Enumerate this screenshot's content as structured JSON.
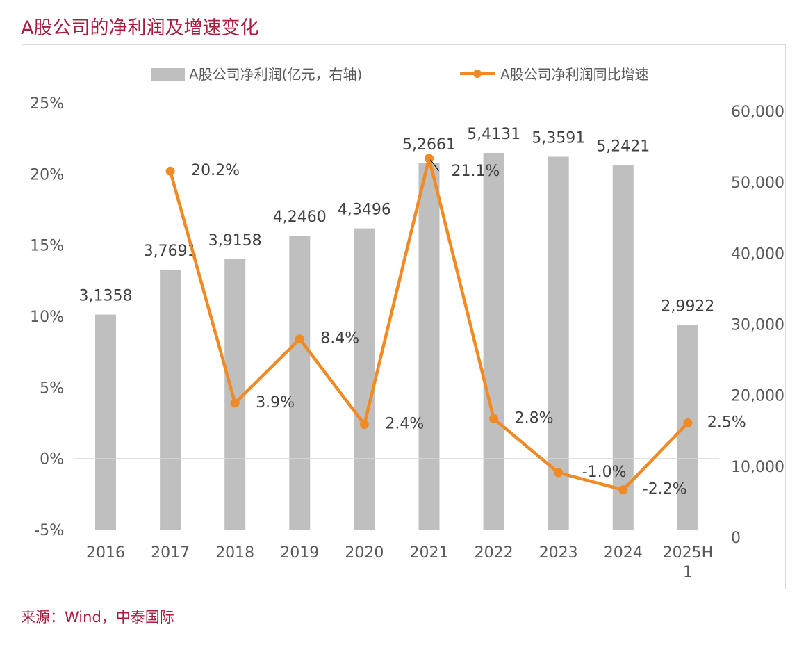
{
  "title": "A股公司的净利润及增速变化",
  "source": "来源：Wind，中泰国际",
  "chart_data": {
    "type": "bar+line",
    "categories": [
      "2016",
      "2017",
      "2018",
      "2019",
      "2020",
      "2021",
      "2022",
      "2023",
      "2024",
      "2025H1"
    ],
    "category_labels": [
      [
        "2016"
      ],
      [
        "2017"
      ],
      [
        "2018"
      ],
      [
        "2019"
      ],
      [
        "2020"
      ],
      [
        "2021"
      ],
      [
        "2022"
      ],
      [
        "2023"
      ],
      [
        "2024"
      ],
      [
        "2025H",
        "1"
      ]
    ],
    "legend": {
      "bar": "A股公司净利润(亿元，右轴)",
      "line": "A股公司净利润同比增速",
      "position": "top"
    },
    "bar_series": {
      "name": "A股公司净利润(亿元，右轴)",
      "values": [
        31358,
        37691,
        39158,
        42460,
        43496,
        52661,
        54131,
        53591,
        52421,
        29922
      ],
      "labels": [
        "3,1358",
        "3,7691",
        "3,9158",
        "4,2460",
        "4,3496",
        "5,2661",
        "5,4131",
        "5,3591",
        "5,2421",
        "2,9922"
      ],
      "axis": "right",
      "color": "#bfbfbf"
    },
    "line_series": {
      "name": "A股公司净利润同比增速",
      "x": [
        "2017",
        "2018",
        "2019",
        "2020",
        "2021",
        "2022",
        "2023",
        "2024",
        "2025H1"
      ],
      "values": [
        20.2,
        3.9,
        8.4,
        2.4,
        21.1,
        2.8,
        -1.0,
        -2.2,
        2.5
      ],
      "labels": [
        "20.2%",
        "3.9%",
        "8.4%",
        "2.4%",
        "21.1%",
        "2.8%",
        "-1.0%",
        "-2.2%",
        "2.5%"
      ],
      "axis": "left",
      "color": "#f08a24"
    },
    "left_axis": {
      "min": -5,
      "max": 25,
      "ticks": [
        "25%",
        "20%",
        "15%",
        "10%",
        "5%",
        "0%",
        "-5%"
      ],
      "tick_values": [
        25,
        20,
        15,
        10,
        5,
        0,
        -5
      ]
    },
    "right_axis": {
      "min": 0,
      "max": 60000,
      "ticks": [
        "60,000",
        "50,000",
        "40,000",
        "30,000",
        "20,000",
        "10,000",
        "0"
      ],
      "tick_values": [
        60000,
        50000,
        40000,
        30000,
        20000,
        10000,
        0
      ]
    }
  }
}
